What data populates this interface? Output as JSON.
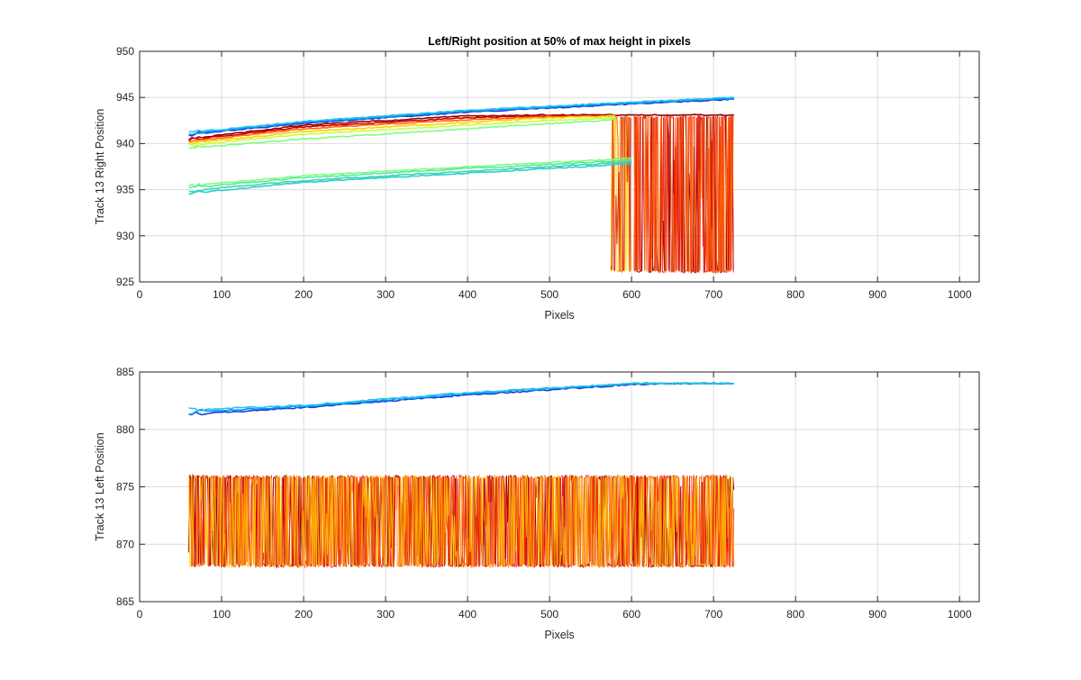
{
  "chart_data": [
    {
      "type": "line",
      "title": "Left/Right position at 50% of max height in pixels",
      "xlabel": "Pixels",
      "ylabel": "Track 13 Right Position",
      "xlim": [
        0,
        1024
      ],
      "ylim": [
        925,
        950
      ],
      "xticks": [
        "0",
        "100",
        "200",
        "300",
        "400",
        "500",
        "600",
        "700",
        "800",
        "900",
        "1000"
      ],
      "yticks": [
        "925",
        "930",
        "935",
        "940",
        "945",
        "950"
      ],
      "grid": true,
      "series": [
        {
          "color": "#1a3fcf",
          "x": [
            60,
            200,
            400,
            600,
            725
          ],
          "values": [
            941.0,
            942.2,
            943.4,
            944.3,
            944.8
          ]
        },
        {
          "color": "#0a8cff",
          "x": [
            60,
            200,
            400,
            600,
            725
          ],
          "values": [
            941.1,
            942.3,
            943.5,
            944.4,
            944.9
          ]
        },
        {
          "color": "#21c8e8",
          "x": [
            60,
            200,
            400,
            600,
            725
          ],
          "values": [
            941.2,
            942.4,
            943.6,
            944.5,
            945.0
          ]
        },
        {
          "color": "#990000",
          "x": [
            60,
            200,
            400,
            500,
            725
          ],
          "values": [
            940.5,
            942.0,
            943.0,
            943.1,
            943.1
          ]
        },
        {
          "color": "#cc0000",
          "x": [
            60,
            200,
            400,
            500,
            580
          ],
          "values": [
            940.4,
            941.8,
            942.8,
            943.0,
            943.0
          ]
        },
        {
          "color": "#ff6a00",
          "x": [
            60,
            200,
            400,
            500,
            580
          ],
          "values": [
            940.2,
            941.6,
            942.6,
            942.9,
            943.0
          ]
        },
        {
          "color": "#ffd000",
          "x": [
            60,
            200,
            400,
            500,
            580
          ],
          "values": [
            940.0,
            941.3,
            942.3,
            942.8,
            943.0
          ]
        },
        {
          "color": "#c6ff3c",
          "x": [
            60,
            200,
            400,
            500,
            580
          ],
          "values": [
            939.8,
            941.0,
            942.0,
            942.5,
            942.8
          ]
        },
        {
          "color": "#7dff7d",
          "x": [
            60,
            200,
            400,
            580
          ],
          "values": [
            939.5,
            940.5,
            941.6,
            942.6
          ]
        },
        {
          "color": "#7dff7d",
          "x": [
            60,
            200,
            400,
            600
          ],
          "values": [
            935.4,
            936.5,
            937.5,
            938.4
          ]
        },
        {
          "color": "#59e8a0",
          "x": [
            60,
            200,
            400,
            600
          ],
          "values": [
            935.2,
            936.3,
            937.3,
            938.2
          ]
        },
        {
          "color": "#40d4b4",
          "x": [
            60,
            200,
            400,
            600
          ],
          "values": [
            934.9,
            936.0,
            937.0,
            938.0
          ]
        },
        {
          "color": "#2ad1c8",
          "x": [
            60,
            200,
            400,
            600
          ],
          "values": [
            934.6,
            935.8,
            936.8,
            937.8
          ]
        }
      ],
      "noise_bands": [
        {
          "colors": [
            "#ff6a00",
            "#ffd000",
            "#cc0000"
          ],
          "x_range": [
            575,
            600
          ],
          "y_range": [
            926,
            943
          ]
        },
        {
          "colors": [
            "#990000",
            "#cc0000",
            "#ff2000",
            "#ff6a00"
          ],
          "x_range": [
            603,
            725
          ],
          "y_range": [
            926,
            943
          ]
        }
      ]
    },
    {
      "type": "line",
      "title": "",
      "xlabel": "Pixels",
      "ylabel": "Track 13 Left Position",
      "xlim": [
        0,
        1024
      ],
      "ylim": [
        865,
        885
      ],
      "xticks": [
        "0",
        "100",
        "200",
        "300",
        "400",
        "500",
        "600",
        "700",
        "800",
        "900",
        "1000"
      ],
      "yticks": [
        "865",
        "870",
        "875",
        "880",
        "885"
      ],
      "grid": true,
      "series": [
        {
          "color": "#1a3fcf",
          "x": [
            60,
            200,
            400,
            600,
            640,
            725
          ],
          "values": [
            881.3,
            881.9,
            883.0,
            883.9,
            884.0,
            884.0
          ]
        },
        {
          "color": "#0a8cff",
          "x": [
            60,
            200,
            400,
            600,
            640,
            725
          ],
          "values": [
            881.5,
            882.0,
            883.1,
            884.0,
            884.0,
            884.0
          ]
        },
        {
          "color": "#21c8e8",
          "x": [
            60,
            200,
            400,
            600,
            640,
            725
          ],
          "values": [
            881.7,
            882.1,
            883.2,
            884.0,
            884.0,
            884.0
          ]
        }
      ],
      "noise_bands": [
        {
          "colors": [
            "#990000",
            "#cc0000",
            "#ff2000",
            "#ff6a00",
            "#ffd000"
          ],
          "x_range": [
            60,
            725
          ],
          "y_range": [
            868,
            876
          ]
        }
      ]
    }
  ]
}
